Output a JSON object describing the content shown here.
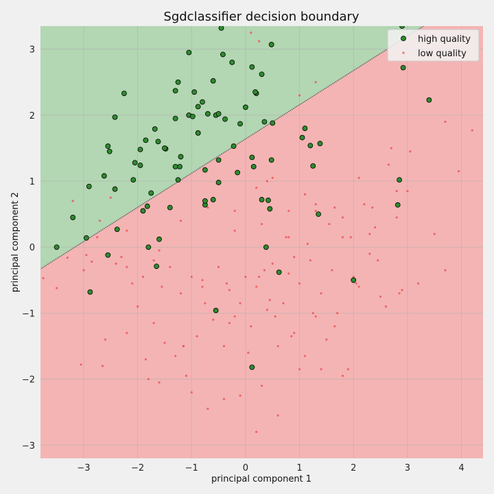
{
  "chart_data": {
    "type": "scatter",
    "title": "Sgdclassifier decision boundary",
    "xlabel": "principal component 1",
    "ylabel": "principal component 2",
    "xlim": [
      -3.8,
      4.4
    ],
    "ylim": [
      -3.2,
      3.35
    ],
    "xticks": [
      -3,
      -2,
      -1,
      0,
      1,
      2,
      3,
      4
    ],
    "yticks": [
      -3,
      -2,
      -1,
      0,
      1,
      2,
      3
    ],
    "grid": true,
    "legend_position": "top-right",
    "colors": {
      "high_region": "#b3d6b3",
      "low_region": "#f4b4b4",
      "boundary": "#606060",
      "high_point_fill": "#2e8b2e",
      "high_point_edge": "#000000",
      "low_point": "#f05050",
      "grid": "#b0b0b0"
    },
    "decision_boundary": {
      "type": "line",
      "points": [
        [
          -3.8,
          -0.33
        ],
        [
          3.3,
          3.35
        ]
      ]
    },
    "series": [
      {
        "name": "high quality",
        "marker": "circle-outlined",
        "x": [
          -0.45,
          -0.42,
          0.48,
          -1.05,
          -0.6,
          -0.25,
          0.12,
          0.3,
          0.2,
          0.35,
          -1.25,
          -0.8,
          -1.3,
          -0.55,
          -0.95,
          -0.7,
          -0.88,
          -0.5,
          0.0,
          -0.38,
          -0.1,
          0.5,
          -1.05,
          -0.98,
          -0.5,
          -1.22,
          -1.62,
          -1.48,
          -1.5,
          -1.68,
          -1.85,
          -1.95,
          -2.05,
          -2.55,
          -2.42,
          -2.52,
          -2.25,
          -1.95,
          -2.08,
          -1.82,
          -1.3,
          -0.88,
          -0.75,
          -1.2,
          -1.3,
          -1.25,
          -0.5,
          -0.6,
          -1.9,
          -1.75,
          -1.4,
          -2.9,
          -2.42,
          -2.38,
          -2.62,
          -2.95,
          -3.2,
          -3.5,
          -2.55,
          -1.6,
          -1.65,
          -1.8,
          -2.88,
          -0.75,
          -0.75,
          0.12,
          0.3,
          0.42,
          0.45,
          0.38,
          0.62,
          1.35,
          1.05,
          1.1,
          1.2,
          1.38,
          1.25,
          2.85,
          2.92,
          2.82,
          3.4,
          2.9,
          -0.22,
          -0.15,
          0.15,
          0.48,
          0.18,
          2.0,
          -0.55,
          0.12
        ],
        "y": [
          3.32,
          2.92,
          3.07,
          2.95,
          2.52,
          2.8,
          2.73,
          2.62,
          2.33,
          1.9,
          2.5,
          2.2,
          2.37,
          2.0,
          2.35,
          2.02,
          2.13,
          2.02,
          2.12,
          1.94,
          1.87,
          1.88,
          2.0,
          1.98,
          1.32,
          1.22,
          1.6,
          1.49,
          1.5,
          1.79,
          1.62,
          1.24,
          1.28,
          1.53,
          1.97,
          1.45,
          2.33,
          1.48,
          1.02,
          0.62,
          1.95,
          1.73,
          1.17,
          1.37,
          1.22,
          1.02,
          0.98,
          0.72,
          0.55,
          0.82,
          0.6,
          0.92,
          0.88,
          0.27,
          1.08,
          0.14,
          0.45,
          0.0,
          -0.12,
          0.12,
          -0.29,
          0.0,
          -0.68,
          0.64,
          0.7,
          1.36,
          0.72,
          0.71,
          0.58,
          0.0,
          -0.38,
          0.5,
          1.66,
          1.8,
          1.54,
          1.57,
          1.23,
          1.02,
          2.72,
          0.64,
          2.23,
          3.35,
          1.53,
          1.13,
          1.22,
          1.32,
          2.35,
          -0.5,
          -0.96,
          -1.82
        ]
      },
      {
        "name": "low quality",
        "marker": "dot",
        "x": [
          -3.75,
          -3.5,
          -3.3,
          -3.2,
          -3.05,
          -2.95,
          -2.85,
          -2.75,
          -2.65,
          -2.5,
          -2.4,
          -2.3,
          -2.2,
          -2.1,
          -2.0,
          -1.9,
          -1.8,
          -1.7,
          -1.6,
          -1.5,
          -1.4,
          -1.3,
          -1.2,
          -1.1,
          -1.0,
          -0.9,
          -0.8,
          -0.7,
          -0.6,
          -0.5,
          -0.4,
          -0.3,
          -0.2,
          -0.1,
          0.0,
          0.1,
          0.2,
          0.3,
          0.4,
          0.5,
          0.6,
          0.7,
          0.8,
          0.9,
          1.0,
          1.1,
          1.2,
          1.3,
          1.4,
          1.5,
          1.6,
          1.7,
          1.8,
          1.9,
          2.0,
          2.1,
          2.2,
          2.3,
          2.4,
          2.5,
          2.6,
          2.7,
          2.8,
          2.9,
          3.0,
          3.2,
          3.5,
          3.7,
          3.95,
          4.2,
          -3.0,
          -2.6,
          -2.2,
          -1.85,
          -1.55,
          -1.15,
          -0.75,
          -0.35,
          0.05,
          0.45,
          0.85,
          1.25,
          1.65,
          2.05,
          2.45,
          2.85,
          -2.7,
          -2.2,
          -1.7,
          -1.2,
          -0.7,
          -0.2,
          0.3,
          0.8,
          1.3,
          1.8,
          2.3,
          2.8,
          -1.6,
          -1.0,
          -0.4,
          0.2,
          0.6,
          1.0,
          1.4,
          1.8,
          0.2,
          0.5,
          0.8,
          1.3,
          -0.8,
          -0.3,
          0.25,
          0.55,
          0.9,
          -1.15,
          -0.2,
          0.4,
          1.1,
          1.65,
          2.1,
          -0.1,
          0.35,
          0.75,
          1.15,
          1.55,
          1.95,
          2.35,
          2.65,
          3.05,
          3.7,
          1.0,
          1.3,
          0.1,
          0.25
        ],
        "y": [
          -0.47,
          -0.62,
          -0.16,
          0.7,
          -1.78,
          -0.12,
          -0.22,
          0.15,
          -1.8,
          0.75,
          -0.25,
          -0.15,
          -1.3,
          -0.55,
          -0.9,
          -0.45,
          -2.0,
          -1.15,
          -0.05,
          -1.45,
          -0.3,
          -1.65,
          -0.7,
          -1.95,
          -0.45,
          -1.35,
          -0.6,
          -2.45,
          -1.1,
          -0.3,
          -1.5,
          -0.65,
          -1.05,
          -2.25,
          -0.45,
          -1.2,
          -0.6,
          -2.1,
          -0.95,
          -0.25,
          -1.5,
          -0.85,
          -0.4,
          -1.3,
          -0.55,
          -1.65,
          -0.2,
          -1.05,
          -0.7,
          -1.4,
          -0.35,
          -1.0,
          0.15,
          -1.85,
          -0.45,
          -0.6,
          0.65,
          -0.1,
          0.3,
          -0.75,
          -0.9,
          1.5,
          0.45,
          -0.65,
          0.85,
          -0.55,
          0.2,
          1.9,
          1.15,
          1.77,
          -0.35,
          -1.4,
          -0.3,
          -1.7,
          -0.6,
          -1.5,
          -0.85,
          -0.55,
          -1.6,
          -0.8,
          -1.35,
          -1.0,
          -1.2,
          -0.55,
          -0.2,
          -0.7,
          0.4,
          0.25,
          -0.2,
          0.4,
          0.6,
          0.25,
          0.35,
          0.15,
          0.55,
          0.45,
          0.2,
          0.85,
          -2.05,
          -2.2,
          -2.3,
          -2.8,
          -2.55,
          -1.85,
          -1.85,
          -1.95,
          0.9,
          1.05,
          0.55,
          0.65,
          -0.5,
          -1.15,
          -0.45,
          -1.05,
          -0.15,
          -1.5,
          0.55,
          1.0,
          0.8,
          0.6,
          1.05,
          -0.85,
          -0.35,
          0.15,
          0.05,
          0.35,
          0.15,
          0.6,
          1.25,
          1.45,
          -0.35,
          2.3,
          2.5,
          3.25,
          3.12
        ]
      }
    ]
  }
}
